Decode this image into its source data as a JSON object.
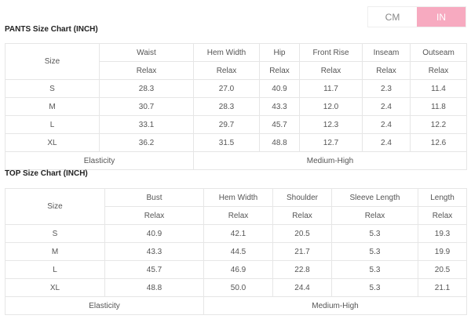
{
  "unit_toggle": {
    "options": [
      "CM",
      "IN"
    ],
    "selected": "IN",
    "accent": "#f7aac0"
  },
  "pants": {
    "title": "PANTS Size Chart (INCH)",
    "size_label": "Size",
    "columns": [
      "Waist",
      "Hem Width",
      "Hip",
      "Front Rise",
      "Inseam",
      "Outseam"
    ],
    "sub_label": "Relax",
    "rows": [
      {
        "size": "S",
        "values": [
          "28.3",
          "27.0",
          "40.9",
          "11.7",
          "2.3",
          "11.4"
        ]
      },
      {
        "size": "M",
        "values": [
          "30.7",
          "28.3",
          "43.3",
          "12.0",
          "2.4",
          "11.8"
        ]
      },
      {
        "size": "L",
        "values": [
          "33.1",
          "29.7",
          "45.7",
          "12.3",
          "2.4",
          "12.2"
        ]
      },
      {
        "size": "XL",
        "values": [
          "36.2",
          "31.5",
          "48.8",
          "12.7",
          "2.4",
          "12.6"
        ]
      }
    ],
    "elasticity_label": "Elasticity",
    "elasticity_value": "Medium-High"
  },
  "top": {
    "title": "TOP Size Chart (INCH)",
    "size_label": "Size",
    "columns": [
      "Bust",
      "Hem Width",
      "Shoulder",
      "Sleeve Length",
      "Length"
    ],
    "sub_label": "Relax",
    "rows": [
      {
        "size": "S",
        "values": [
          "40.9",
          "42.1",
          "20.5",
          "5.3",
          "19.3"
        ]
      },
      {
        "size": "M",
        "values": [
          "43.3",
          "44.5",
          "21.7",
          "5.3",
          "19.9"
        ]
      },
      {
        "size": "L",
        "values": [
          "45.7",
          "46.9",
          "22.8",
          "5.3",
          "20.5"
        ]
      },
      {
        "size": "XL",
        "values": [
          "48.8",
          "50.0",
          "24.4",
          "5.3",
          "21.1"
        ]
      }
    ],
    "elasticity_label": "Elasticity",
    "elasticity_value": "Medium-High"
  }
}
